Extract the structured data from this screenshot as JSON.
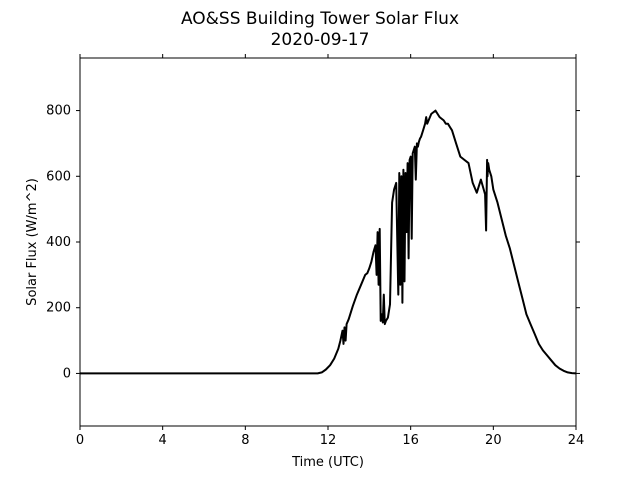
{
  "chart_data": {
    "type": "line",
    "title": "AO&SS Building Tower Solar Flux",
    "subtitle": "2020-09-17",
    "xlabel": "Time (UTC)",
    "ylabel": "Solar Flux (W/m^2)",
    "xlim": [
      0,
      24
    ],
    "ylim": [
      -160,
      960
    ],
    "xticks": [
      0,
      4,
      8,
      12,
      16,
      20,
      24
    ],
    "yticks": [
      0,
      200,
      400,
      600,
      800
    ],
    "grid": false,
    "legend": "none",
    "line_color": "#000000",
    "series": [
      {
        "x": [
          0,
          11.5,
          11.7,
          11.9,
          12.1,
          12.3,
          12.5,
          12.6,
          12.7,
          12.75,
          12.8,
          12.85,
          12.9,
          13.0,
          13.2,
          13.4,
          13.6,
          13.8,
          13.9,
          14.0,
          14.1,
          14.2,
          14.3,
          14.35,
          14.4,
          14.45,
          14.5,
          14.55,
          14.6,
          14.65,
          14.7,
          14.75,
          14.8,
          14.9,
          15.0,
          15.1,
          15.2,
          15.3,
          15.4,
          15.45,
          15.5,
          15.55,
          15.6,
          15.65,
          15.7,
          15.75,
          15.8,
          15.85,
          15.9,
          15.95,
          16.0,
          16.05,
          16.1,
          16.2,
          16.25,
          16.3,
          16.35,
          16.4,
          16.45,
          16.5,
          16.6,
          16.7,
          16.75,
          16.8,
          17.0,
          17.2,
          17.4,
          17.6,
          17.7,
          17.8,
          17.9,
          18.0,
          18.2,
          18.4,
          18.6,
          18.8,
          19.0,
          19.2,
          19.4,
          19.6,
          19.65,
          19.7,
          19.72,
          19.75,
          19.8,
          19.9,
          20.0,
          20.2,
          20.4,
          20.6,
          20.8,
          21.0,
          21.2,
          21.4,
          21.6,
          21.8,
          22.0,
          22.2,
          22.4,
          22.6,
          22.8,
          23.0,
          23.2,
          23.4,
          23.6,
          23.8,
          24.0
        ],
        "y": [
          0,
          0,
          3,
          12,
          25,
          45,
          75,
          100,
          130,
          90,
          140,
          100,
          150,
          165,
          205,
          240,
          270,
          300,
          305,
          320,
          340,
          370,
          390,
          300,
          430,
          270,
          440,
          160,
          180,
          155,
          240,
          150,
          160,
          170,
          210,
          520,
          560,
          580,
          240,
          610,
          270,
          600,
          215,
          620,
          280,
          610,
          430,
          640,
          350,
          650,
          660,
          410,
          670,
          690,
          590,
          700,
          690,
          705,
          715,
          720,
          740,
          760,
          780,
          760,
          790,
          800,
          780,
          770,
          760,
          760,
          750,
          740,
          700,
          660,
          650,
          640,
          580,
          550,
          590,
          545,
          435,
          650,
          600,
          640,
          620,
          600,
          560,
          520,
          470,
          420,
          380,
          330,
          280,
          230,
          180,
          150,
          120,
          90,
          70,
          55,
          40,
          25,
          15,
          8,
          3,
          1,
          0
        ]
      }
    ]
  }
}
